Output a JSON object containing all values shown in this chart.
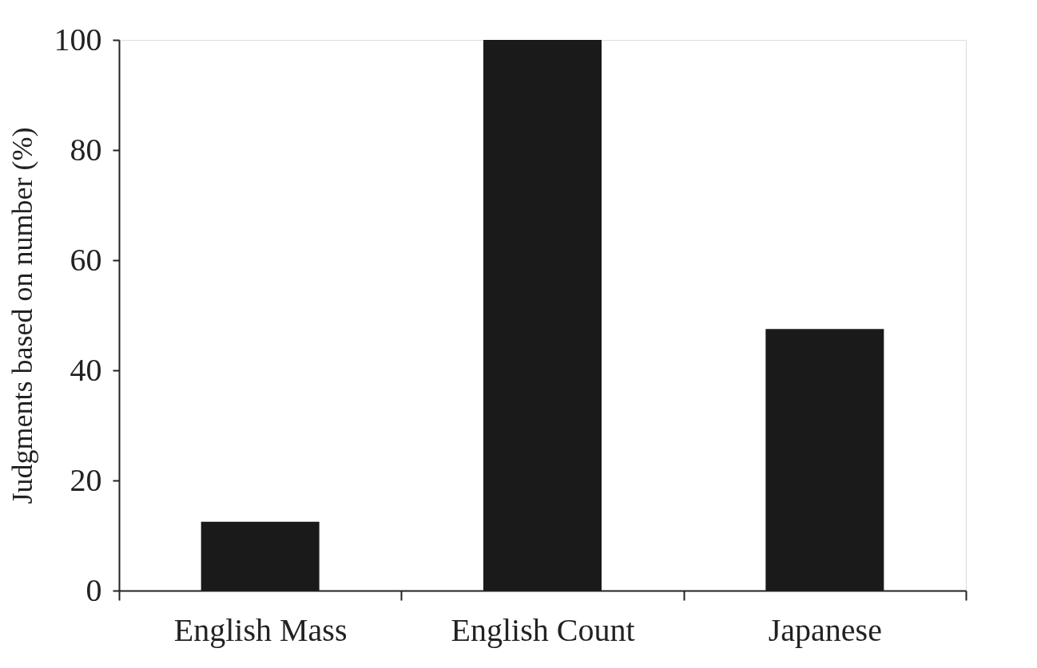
{
  "chart_data": {
    "type": "bar",
    "ylabel": "Judgments based on number (%)",
    "categories": [
      "English  Mass",
      "English  Count",
      "Japanese"
    ],
    "values": [
      12.5,
      100,
      47.5
    ],
    "color": "#1a1a1a",
    "ylim": [
      0,
      100
    ],
    "yticks": [
      0,
      20,
      40,
      60,
      80,
      100
    ],
    "grid": false
  }
}
